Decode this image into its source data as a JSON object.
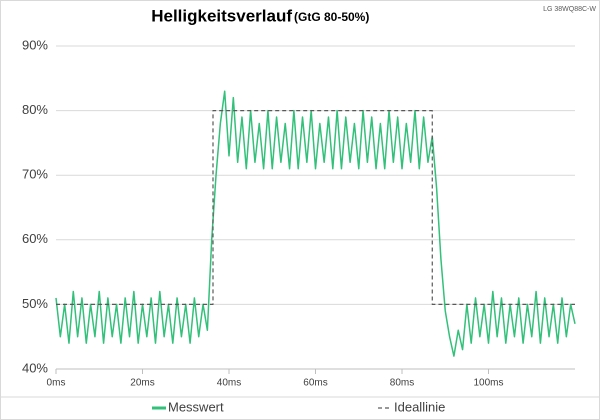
{
  "chart_data": {
    "type": "line",
    "title": "Helligkeitsverlauf",
    "subtitle": "(GtG 80-50%)",
    "annotation": "LG 38WQ88C-W",
    "xlim": [
      0,
      120
    ],
    "ylim": [
      40,
      90
    ],
    "xticks": [
      {
        "value": 0,
        "label": "0ms"
      },
      {
        "value": 20,
        "label": "20ms"
      },
      {
        "value": 40,
        "label": "40ms"
      },
      {
        "value": 60,
        "label": "60ms"
      },
      {
        "value": 80,
        "label": "80ms"
      },
      {
        "value": 100,
        "label": "100ms"
      }
    ],
    "yticks": [
      {
        "value": 40,
        "label": "40%"
      },
      {
        "value": 50,
        "label": "50%"
      },
      {
        "value": 60,
        "label": "60%"
      },
      {
        "value": 70,
        "label": "70%"
      },
      {
        "value": 80,
        "label": "80%"
      },
      {
        "value": 90,
        "label": "90%"
      }
    ],
    "grid": true,
    "legend": "bottom",
    "series": [
      {
        "name": "Messwert",
        "color": "#33c07a",
        "dash": "solid",
        "x": [
          0,
          1,
          2,
          3,
          4,
          5,
          6,
          7,
          8,
          9,
          10,
          11,
          12,
          13,
          14,
          15,
          16,
          17,
          18,
          19,
          20,
          21,
          22,
          23,
          24,
          25,
          26,
          27,
          28,
          29,
          30,
          31,
          32,
          33,
          34,
          35,
          36,
          37,
          38,
          39,
          40,
          41,
          42,
          43,
          44,
          45,
          46,
          47,
          48,
          49,
          50,
          51,
          52,
          53,
          54,
          55,
          56,
          57,
          58,
          59,
          60,
          61,
          62,
          63,
          64,
          65,
          66,
          67,
          68,
          69,
          70,
          71,
          72,
          73,
          74,
          75,
          76,
          77,
          78,
          79,
          80,
          81,
          82,
          83,
          84,
          85,
          86,
          87,
          88,
          89,
          90,
          91,
          92,
          93,
          94,
          95,
          96,
          97,
          98,
          99,
          100,
          101,
          102,
          103,
          104,
          105,
          106,
          107,
          108,
          109,
          110,
          111,
          112,
          113,
          114,
          115,
          116,
          117,
          118,
          119,
          120
        ],
        "values": [
          51,
          45,
          50,
          44,
          52,
          45,
          51,
          44,
          50,
          45,
          52,
          44,
          51,
          45,
          50,
          44,
          51,
          45,
          52,
          44,
          50,
          45,
          51,
          44,
          52,
          45,
          50,
          44,
          51,
          45,
          50,
          44,
          51,
          45,
          50,
          46,
          60,
          70,
          78,
          83,
          73,
          82,
          72,
          79,
          71,
          80,
          72,
          78,
          71,
          80,
          71,
          79,
          72,
          78,
          71,
          80,
          71,
          79,
          72,
          80,
          71,
          78,
          72,
          79,
          71,
          80,
          71,
          79,
          72,
          78,
          71,
          80,
          72,
          79,
          71,
          78,
          71,
          80,
          72,
          79,
          71,
          78,
          72,
          80,
          71,
          79,
          72,
          76,
          68,
          57,
          49,
          45,
          42,
          46,
          43,
          50,
          44,
          51,
          45,
          50,
          44,
          52,
          45,
          51,
          44,
          50,
          45,
          51,
          44,
          50,
          45,
          52,
          44,
          51,
          45,
          50,
          44,
          51,
          45,
          50,
          47
        ]
      },
      {
        "name": "Ideallinie",
        "color": "#595959",
        "dash": "dashed",
        "x": [
          0,
          36.3,
          36.3,
          87,
          87,
          120
        ],
        "values": [
          50,
          50,
          80,
          80,
          50,
          50
        ]
      }
    ]
  }
}
